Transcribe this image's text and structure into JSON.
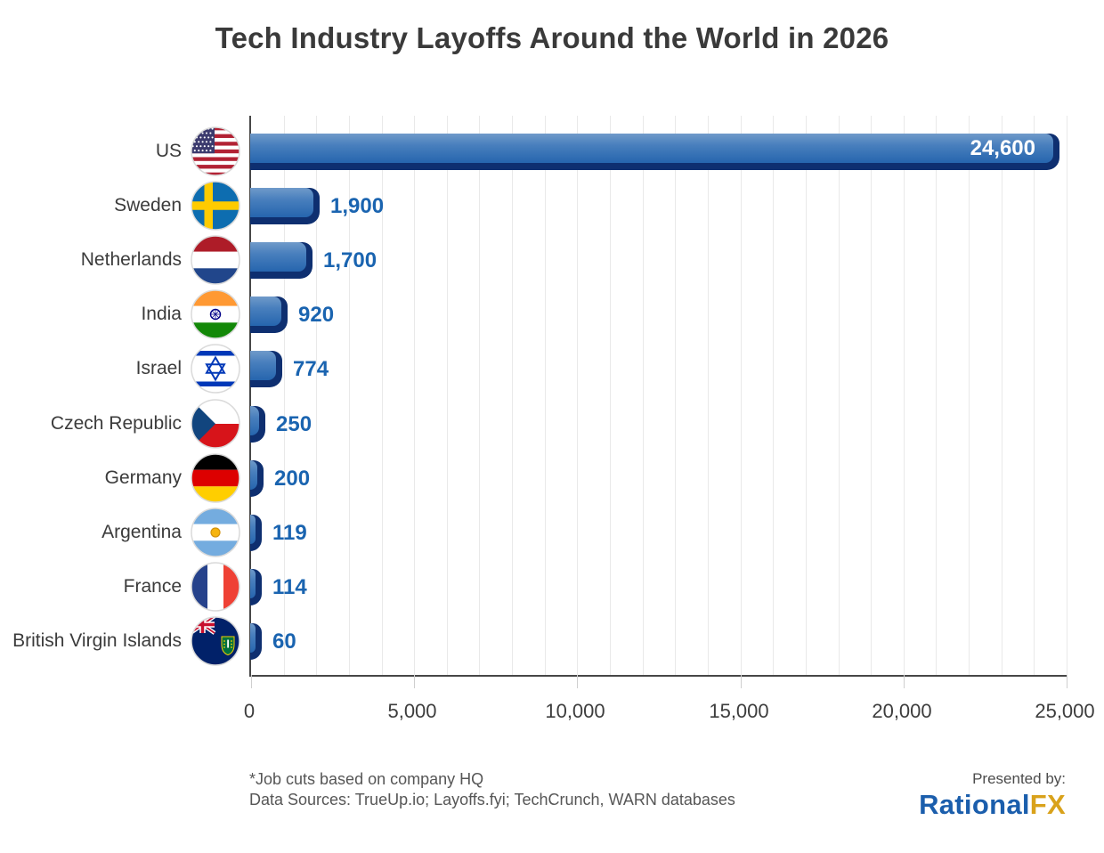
{
  "title": "Tech Industry Layoffs Around the World in 2026",
  "chart_data": {
    "type": "bar",
    "orientation": "horizontal",
    "title": "Tech Industry Layoffs Around the World in 2026",
    "categories": [
      "US",
      "Sweden",
      "Netherlands",
      "India",
      "Israel",
      "Czech Republic",
      "Germany",
      "Argentina",
      "France",
      "British Virgin Islands"
    ],
    "values": [
      24600,
      1900,
      1700,
      920,
      774,
      250,
      200,
      119,
      114,
      60
    ],
    "value_labels": [
      "24,600",
      "1,900",
      "1,700",
      "920",
      "774",
      "250",
      "200",
      "119",
      "114",
      "60"
    ],
    "flags": [
      "us",
      "se",
      "nl",
      "in",
      "il",
      "cz",
      "de",
      "ar",
      "fr",
      "vg"
    ],
    "xlabel": "",
    "ylabel": "",
    "xlim": [
      0,
      25000
    ],
    "x_ticks": [
      0,
      5000,
      10000,
      15000,
      20000,
      25000
    ],
    "x_tick_labels": [
      "0",
      "5,000",
      "10,000",
      "15,000",
      "20,000",
      "25,000"
    ],
    "minor_grid_interval": 1000,
    "grid": true,
    "legend": false,
    "colors": {
      "bar_gradient_top": "#6f9aca",
      "bar_gradient_bottom": "#2665ae",
      "bar_shadow": "#0e2f70",
      "value_label": "#1a64b0",
      "value_label_on_bar": "#ffffff",
      "axis": "#474747",
      "gridline": "#e9e9e9",
      "text": "#3b3b3b"
    }
  },
  "footer": {
    "note": "*Job cuts based on company HQ",
    "sources": "Data Sources: TrueUp.io; Layoffs.fyi; TechCrunch, WARN databases",
    "presented_by": "Presented by:",
    "brand_part1": "Rational",
    "brand_part2": "FX"
  }
}
